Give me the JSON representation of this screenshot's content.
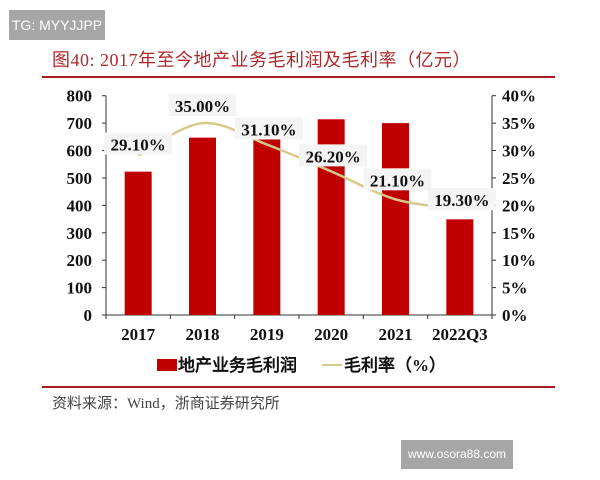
{
  "watermarks": {
    "top_left": "TG: MYYJJPP",
    "bottom_right": "www.osora88.com"
  },
  "title": "图40:  2017年至今地产业务毛利润及毛利率（亿元）",
  "source": "资料来源：Wind，浙商证券研究所",
  "chart_data": {
    "type": "bar+line",
    "categories": [
      "2017",
      "2018",
      "2019",
      "2020",
      "2021",
      "2022Q3"
    ],
    "series": [
      {
        "name": "地产业务毛利润",
        "type": "bar",
        "axis": "left",
        "color": "#c00000",
        "values": [
          523,
          647,
          642,
          714,
          700,
          349
        ]
      },
      {
        "name": "毛利率（%）",
        "type": "line",
        "axis": "right",
        "color": "#d6c98a",
        "values": [
          29.1,
          35.0,
          31.1,
          26.2,
          21.1,
          19.3
        ],
        "data_labels": [
          "29.10%",
          "35.00%",
          "31.10%",
          "26.20%",
          "21.10%",
          "19.30%"
        ]
      }
    ],
    "left_axis": {
      "ylim": [
        0,
        800
      ],
      "ticks": [
        "0",
        "100",
        "200",
        "300",
        "400",
        "500",
        "600",
        "700",
        "800"
      ]
    },
    "right_axis": {
      "ylim": [
        0,
        40
      ],
      "ticks": [
        "0%",
        "5%",
        "10%",
        "15%",
        "20%",
        "25%",
        "30%",
        "35%",
        "40%"
      ]
    },
    "grid": false,
    "legend": "bottom"
  }
}
